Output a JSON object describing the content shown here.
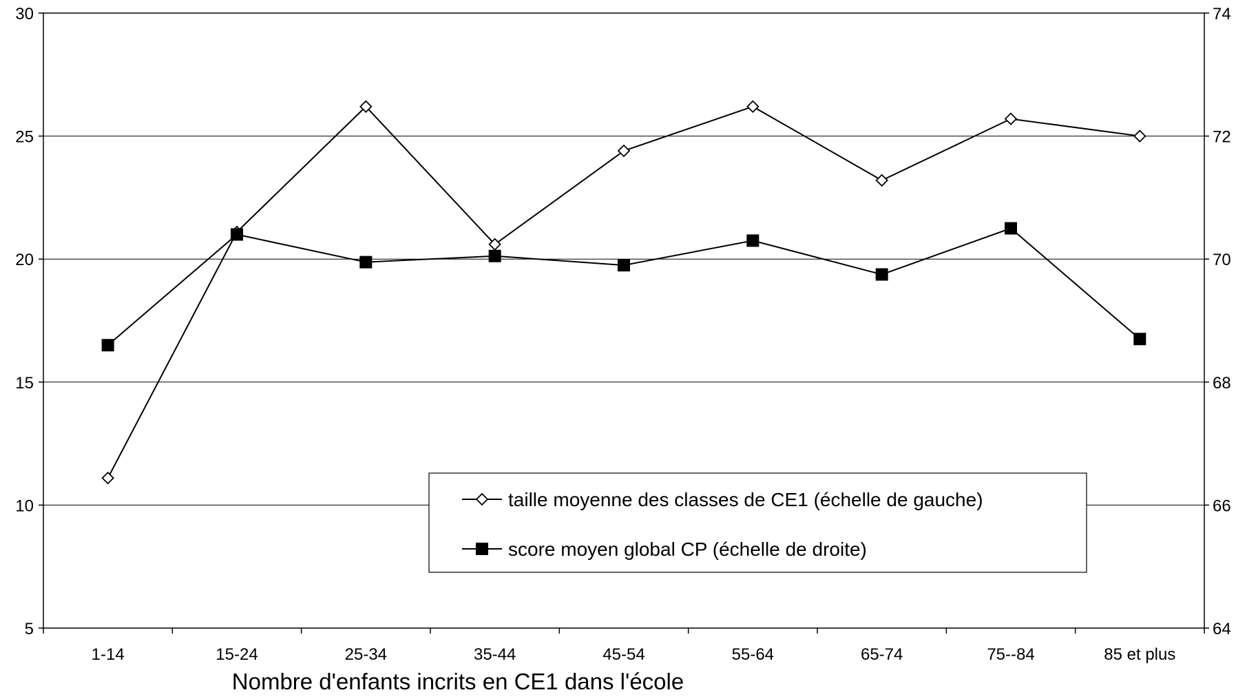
{
  "chart_data": {
    "type": "line",
    "title": "",
    "xlabel": "Nombre d'enfants incrits en CE1 dans l'école",
    "categories": [
      "1-14",
      "15-24",
      "25-34",
      "35-44",
      "45-54",
      "55-64",
      "65-74",
      "75--84",
      "85 et plus"
    ],
    "y_left": {
      "ylim": [
        5,
        30
      ],
      "ticks": [
        "5",
        "10",
        "15",
        "20",
        "25",
        "30"
      ]
    },
    "y_right": {
      "ylim": [
        64,
        74
      ],
      "ticks": [
        "64",
        "66",
        "68",
        "70",
        "72",
        "74"
      ]
    },
    "series": [
      {
        "name": "taille moyenne des classes de CE1 (échelle de gauche)",
        "axis": "left",
        "marker": "diamond-open",
        "values": [
          11.1,
          21.1,
          26.2,
          20.6,
          24.4,
          26.2,
          23.2,
          25.7,
          25.0
        ]
      },
      {
        "name": "score moyen global CP (échelle de droite)",
        "axis": "right",
        "marker": "square-filled",
        "values": [
          68.6,
          70.4,
          69.95,
          70.05,
          69.9,
          70.3,
          69.75,
          70.5,
          68.7
        ]
      }
    ],
    "grid": true,
    "legend_position": "bottom-right"
  }
}
